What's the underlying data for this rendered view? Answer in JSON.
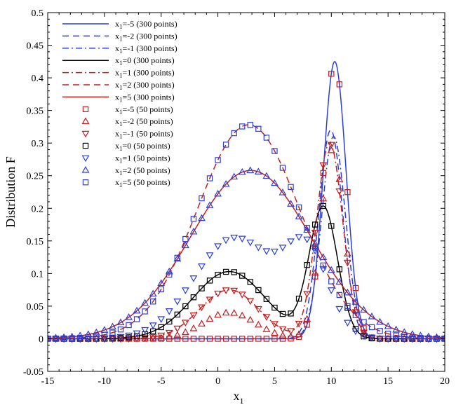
{
  "chart_data": {
    "type": "line",
    "title": "",
    "xlabel": "x",
    "xlabel_sub": "1",
    "ylabel": "Distribution F",
    "xlim": [
      -15,
      20
    ],
    "ylim": [
      -0.05,
      0.5
    ],
    "xticks": [
      -15,
      -10,
      -5,
      0,
      5,
      10,
      15,
      20
    ],
    "yticks": [
      -0.05,
      0,
      0.05,
      0.1,
      0.15,
      0.2,
      0.25,
      0.3,
      0.35,
      0.4,
      0.45,
      0.5
    ],
    "xtick_labels": [
      "-15",
      "-10",
      "-5",
      "0",
      "5",
      "10",
      "15",
      "20"
    ],
    "ytick_labels": [
      "-0.05",
      "0",
      "0.05",
      "0.1",
      "0.15",
      "0.2",
      "0.25",
      "0.3",
      "0.35",
      "0.4",
      "0.45",
      "0.5"
    ],
    "grid": false,
    "legend_position": "top-left",
    "colors": {
      "blue": "#2b3fd6",
      "red": "#c41e1e",
      "black": "#000000"
    },
    "series": [
      {
        "name": "x1=-5 (300 points)",
        "legend": {
          "pre": "x",
          "sub": "1",
          "post": "=-5 (300 points)"
        },
        "style": "line",
        "color": "blue",
        "dash": "solid",
        "component": "peak",
        "params": {
          "A": 0.425,
          "mu": 10.3,
          "s": 1.0
        }
      },
      {
        "name": "x1=-2 (300 points)",
        "legend": {
          "pre": "x",
          "sub": "1",
          "post": "=-2 (300 points)"
        },
        "style": "line",
        "color": "blue",
        "dash": "dashed",
        "component": "peak",
        "params": {
          "A": 0.32,
          "mu": 9.95,
          "s": 1.05
        }
      },
      {
        "name": "x1=-1 (300 points)",
        "legend": {
          "pre": "x",
          "sub": "1",
          "post": "=-1 (300 points)"
        },
        "style": "line",
        "color": "blue",
        "dash": "dashdot",
        "component": "peak",
        "params": {
          "A": 0.31,
          "mu": 10.2,
          "s": 1.05
        }
      },
      {
        "name": "x1=0 (300 points)",
        "legend": {
          "pre": "x",
          "sub": "1",
          "post": "=0 (300 points)"
        },
        "style": "line",
        "color": "black",
        "dash": "solid",
        "component": "bimodal",
        "params": {
          "A1": 0.103,
          "m1": 1.0,
          "s1": 3.2,
          "A2": 0.2,
          "m2": 9.3,
          "s2": 1.25
        }
      },
      {
        "name": "x1=1 (300 points)",
        "legend": {
          "pre": "x",
          "sub": "1",
          "post": "=1 (300 points)"
        },
        "style": "line",
        "color": "red",
        "dash": "dashdot",
        "component": "bimodal",
        "params": {
          "A1": 0.075,
          "m1": 1.0,
          "s1": 2.6,
          "A2": 0.3,
          "m2": 9.85,
          "s2": 1.15
        }
      },
      {
        "name": "x1=2 (300 points)",
        "legend": {
          "pre": "x",
          "sub": "1",
          "post": "=2 (300 points)"
        },
        "style": "line",
        "color": "red",
        "dash": "dashed",
        "component": "wide",
        "params": {
          "A": 0.328,
          "mu": 2.7,
          "s": 4.5
        }
      },
      {
        "name": "x1=5 (300 points)",
        "legend": {
          "pre": "x",
          "sub": "1",
          "post": "=5 (300 points)"
        },
        "style": "line",
        "color": "red",
        "dash": "solid",
        "component": "wide",
        "params": {
          "A": 0.258,
          "mu": 2.9,
          "s": 5.3
        }
      },
      {
        "name": "x1=-5 (50 points)",
        "legend": {
          "pre": "x",
          "sub": "1",
          "post": "=-5 (50 points)"
        },
        "style": "marker",
        "color": "red",
        "marker": "square",
        "component": "peak",
        "params": {
          "A": 0.425,
          "mu": 10.3,
          "s": 1.0
        }
      },
      {
        "name": "x1=-2 (50 points)",
        "legend": {
          "pre": "x",
          "sub": "1",
          "post": "=-2 (50 points)"
        },
        "style": "marker",
        "color": "red",
        "marker": "triangle-up",
        "component": "bimodal",
        "params": {
          "A1": 0.04,
          "m1": 1.0,
          "s1": 2.3,
          "A2": 0.29,
          "m2": 10.1,
          "s2": 1.05
        }
      },
      {
        "name": "x1=-1 (50 points)",
        "legend": {
          "pre": "x",
          "sub": "1",
          "post": "=-1 (50 points)"
        },
        "style": "marker",
        "color": "red",
        "marker": "triangle-down",
        "component": "bimodal",
        "params": {
          "A1": 0.075,
          "m1": 1.0,
          "s1": 2.6,
          "A2": 0.3,
          "m2": 9.85,
          "s2": 1.15
        }
      },
      {
        "name": "x1=0 (50 points)",
        "legend": {
          "pre": "x",
          "sub": "1",
          "post": "=0 (50 points)"
        },
        "style": "marker",
        "color": "black",
        "marker": "square",
        "component": "bimodal",
        "params": {
          "A1": 0.103,
          "m1": 1.0,
          "s1": 3.2,
          "A2": 0.2,
          "m2": 9.3,
          "s2": 1.25
        }
      },
      {
        "name": "x1=1 (50 points)",
        "legend": {
          "pre": "x",
          "sub": "1",
          "post": "=1 (50 points)"
        },
        "style": "marker",
        "color": "blue",
        "marker": "triangle-down",
        "component": "bimodal",
        "params": {
          "A1": 0.155,
          "m1": 1.5,
          "s1": 3.6,
          "A2": 0.12,
          "m2": 7.9,
          "s2": 1.9
        }
      },
      {
        "name": "x1=2 (50 points)",
        "legend": {
          "pre": "x",
          "sub": "1",
          "post": "=2 (50 points)"
        },
        "style": "marker",
        "color": "blue",
        "marker": "triangle-up",
        "component": "wide",
        "params": {
          "A": 0.258,
          "mu": 2.9,
          "s": 5.3
        }
      },
      {
        "name": "x1=5 (50 points)",
        "legend": {
          "pre": "x",
          "sub": "1",
          "post": "=5 (50 points)"
        },
        "style": "marker",
        "color": "blue",
        "marker": "square",
        "component": "wide",
        "params": {
          "A": 0.328,
          "mu": 2.7,
          "s": 4.5
        }
      }
    ]
  }
}
